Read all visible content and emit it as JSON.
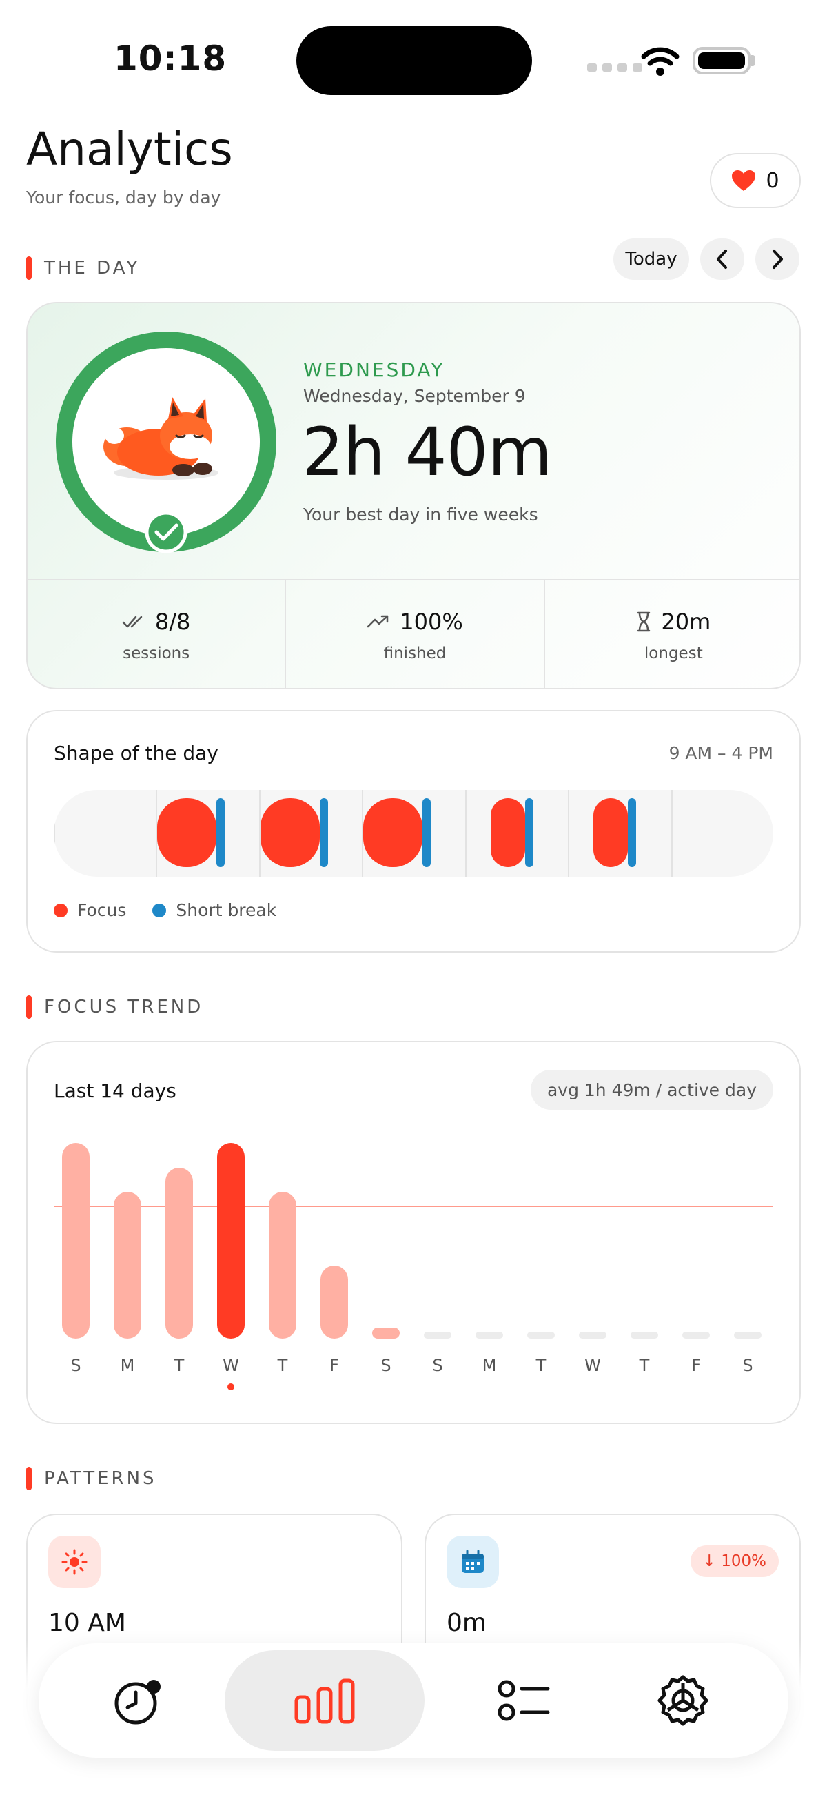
{
  "status": {
    "time": "10:18"
  },
  "header": {
    "title": "Analytics",
    "subtitle": "Your focus, day by day",
    "likes": "0"
  },
  "day_section": {
    "label": "THE DAY",
    "today_button": "Today",
    "prev_icon": "chevron-left-icon",
    "next_icon": "chevron-right-icon"
  },
  "day_card": {
    "weekday": "WEDNESDAY",
    "date": "Wednesday, September 9",
    "total": "2h 40m",
    "note": "Your best day in five weeks",
    "progress": 1.0,
    "stats": [
      {
        "value": "8/8",
        "label": "sessions",
        "icon": "double-check-icon"
      },
      {
        "value": "100%",
        "label": "finished",
        "icon": "trend-up-icon"
      },
      {
        "value": "20m",
        "label": "longest",
        "icon": "hourglass-icon"
      }
    ]
  },
  "shape_card": {
    "title": "Shape of the day",
    "range": "9 AM – 4 PM",
    "legend": [
      {
        "label": "Focus",
        "color": "#ff3b24"
      },
      {
        "label": "Short break",
        "color": "#1e88c8"
      }
    ]
  },
  "trend_section": {
    "label": "FOCUS TREND"
  },
  "trend_card": {
    "title": "Last 14 days",
    "avg": "avg 1h 49m / active day"
  },
  "chart_data": {
    "type": "bar",
    "categories": [
      "S",
      "M",
      "T",
      "W",
      "T",
      "F",
      "S",
      "S",
      "M",
      "T",
      "W",
      "T",
      "F",
      "S"
    ],
    "values": [
      160,
      120,
      140,
      160,
      120,
      60,
      8,
      0,
      0,
      0,
      0,
      0,
      0,
      0
    ],
    "selected_index": 3,
    "average": 109,
    "ylim": [
      0,
      160
    ],
    "colors": {
      "bar": "#ffb0a3",
      "selected": "#ff3b24",
      "empty": "#ececec"
    }
  },
  "patterns_section": {
    "label": "PATTERNS"
  },
  "patterns": [
    {
      "value": "10 AM",
      "icon": "sun-icon",
      "badge": ""
    },
    {
      "value": "0m",
      "icon": "calendar-icon",
      "badge": "↓ 100%"
    }
  ],
  "tabs": [
    {
      "name": "tab-timer",
      "icon": "timer-icon"
    },
    {
      "name": "tab-analytics",
      "icon": "bar-chart-icon",
      "active": true
    },
    {
      "name": "tab-tasks",
      "icon": "list-icon"
    },
    {
      "name": "tab-settings",
      "icon": "settings-icon"
    }
  ]
}
